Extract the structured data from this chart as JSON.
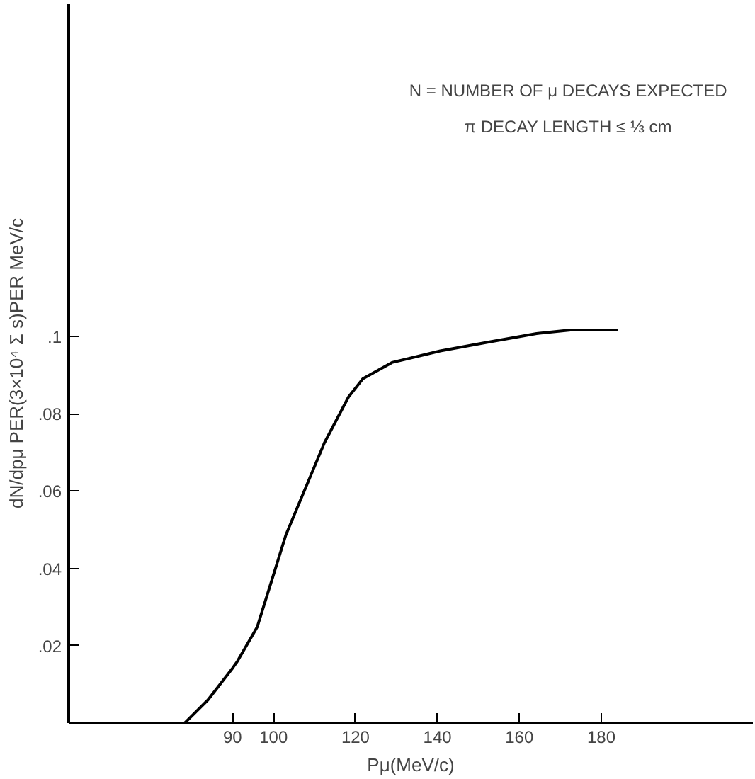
{
  "chart_data": {
    "type": "line",
    "xlabel": "Pμ(MeV/c)",
    "ylabel": "dN/dpμ PER(3×10⁴ Σ s)PER MeV/c",
    "annotations": [
      "N = NUMBER OF μ DECAYS EXPECTED",
      "π DECAY LENGTH ≤ ⅓ cm"
    ],
    "xlim": [
      50,
      217
    ],
    "ylim": [
      0,
      0.186
    ],
    "xticks": [
      90,
      100,
      120,
      140,
      160,
      180
    ],
    "yticks": [
      {
        "value": 0.02,
        "label": ".02"
      },
      {
        "value": 0.04,
        "label": ".04"
      },
      {
        "value": 0.06,
        "label": ".06"
      },
      {
        "value": 0.08,
        "label": ".08"
      },
      {
        "value": 0.1,
        "label": ".1"
      }
    ],
    "grid": false,
    "line_style": "solid",
    "series": [
      {
        "color": "#000000",
        "x": [
          78.3,
          84,
          90,
          91.2,
          96,
          99.5,
          103,
          107.7,
          112.4,
          118.3,
          121.8,
          128.9,
          140.7,
          152.5,
          164.2,
          172.5,
          184
        ],
        "values": [
          0,
          0.006,
          0.0142,
          0.016,
          0.0248,
          0.0367,
          0.0486,
          0.0605,
          0.0724,
          0.0843,
          0.089,
          0.0932,
          0.0962,
          0.0985,
          0.1007,
          0.1016,
          0.1016
        ]
      }
    ]
  }
}
